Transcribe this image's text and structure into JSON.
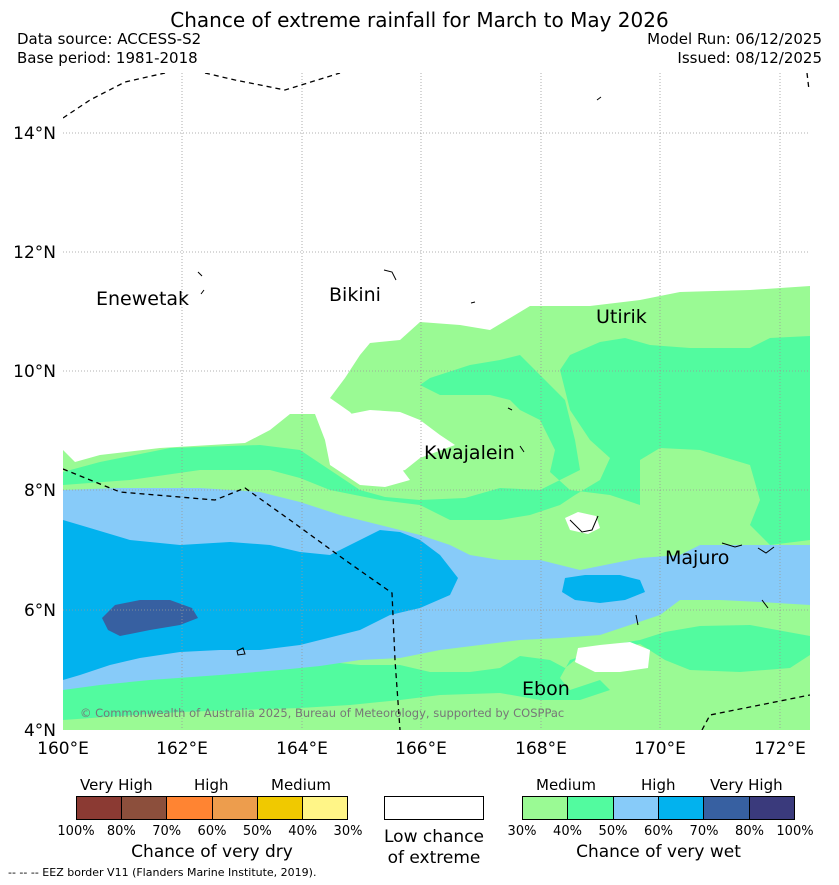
{
  "title": "Chance of extreme rainfall for March to May 2026",
  "header": {
    "data_source": "Data source: ACCESS-S2",
    "base_period": "Base period: 1981-2018",
    "model_run": "Model Run: 06/12/2025",
    "issued": "Issued: 08/12/2025"
  },
  "map": {
    "lat_ticks": [
      "14°N",
      "12°N",
      "10°N",
      "8°N",
      "6°N",
      "4°N"
    ],
    "lon_ticks": [
      "160°E",
      "162°E",
      "164°E",
      "166°E",
      "168°E",
      "170°E",
      "172°E"
    ],
    "places": {
      "enewetak": "Enewetak",
      "bikini": "Bikini",
      "utirik": "Utirik",
      "kwajalein": "Kwajalein",
      "majuro": "Majuro",
      "ebon": "Ebon"
    },
    "copyright": "© Commonwealth of Australia 2025, Bureau of Meteorology, supported by COSPPac"
  },
  "legend": {
    "dry": {
      "heads": [
        "Very High",
        "High",
        "Medium"
      ],
      "pcts": [
        "100%",
        "80%",
        "70%",
        "60%",
        "50%",
        "40%",
        "30%"
      ],
      "colors": [
        "#8b3a33",
        "#8c4f3c",
        "#ff8432",
        "#ed9d4d",
        "#f0c900",
        "#fff587"
      ],
      "label": "Chance of very dry"
    },
    "low": {
      "label_1": "Low chance",
      "label_2": "of extreme"
    },
    "wet": {
      "heads": [
        "Medium",
        "High",
        "Very High"
      ],
      "pcts": [
        "30%",
        "40%",
        "50%",
        "60%",
        "70%",
        "80%",
        "100%"
      ],
      "colors": [
        "#9afa94",
        "#52fb9f",
        "#87cbf9",
        "#02b2ee",
        "#3760a1",
        "#3a3a7c"
      ],
      "label": "Chance of very wet"
    }
  },
  "footer": {
    "eez": "-- -- -- EEZ border V11 (Flanders Marine Institute, 2019)."
  }
}
